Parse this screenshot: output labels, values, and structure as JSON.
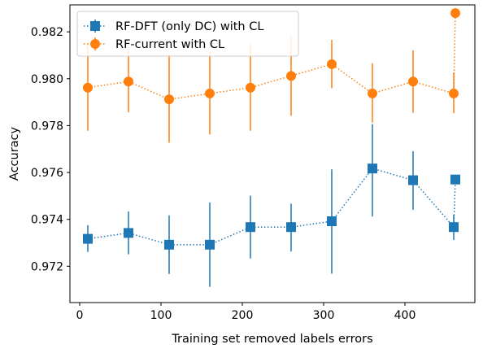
{
  "chart_data": {
    "type": "line",
    "xlabel": "Training set removed labels errors",
    "ylabel": "Accuracy",
    "xlim": [
      -12,
      486
    ],
    "ylim": [
      0.97045,
      0.98315
    ],
    "xticks": [
      0,
      100,
      200,
      300,
      400
    ],
    "xtick_labels": [
      "0",
      "100",
      "200",
      "300",
      "400"
    ],
    "yticks": [
      0.972,
      0.974,
      0.976,
      0.978,
      0.98,
      0.982
    ],
    "ytick_labels": [
      "0.972",
      "0.974",
      "0.976",
      "0.978",
      "0.980",
      "0.982"
    ],
    "grid": false,
    "legend_position": "top-left",
    "series": [
      {
        "name": "RF-DFT (only DC) with CL",
        "color": "#1f77b4",
        "marker": "square",
        "linestyle": "dotted",
        "x": [
          10,
          60,
          110,
          160,
          210,
          260,
          310,
          360,
          410,
          460,
          462
        ],
        "y": [
          0.97317,
          0.97342,
          0.97292,
          0.97292,
          0.97367,
          0.97367,
          0.97392,
          0.97617,
          0.97567,
          0.97367,
          0.9757
        ],
        "err_low": [
          0.97261,
          0.97251,
          0.97167,
          0.97112,
          0.97233,
          0.97263,
          0.97168,
          0.97412,
          0.97441,
          0.97312,
          0.9757
        ],
        "err_high": [
          0.97375,
          0.97434,
          0.97417,
          0.97472,
          0.97501,
          0.97467,
          0.97613,
          0.97806,
          0.97691,
          0.97421,
          0.9757
        ]
      },
      {
        "name": "RF-current with CL",
        "color": "#ff7f0e",
        "marker": "circle",
        "linestyle": "dotted",
        "x": [
          10,
          60,
          110,
          160,
          210,
          260,
          310,
          360,
          410,
          460,
          462
        ],
        "y": [
          0.97962,
          0.97988,
          0.97912,
          0.97937,
          0.97962,
          0.98012,
          0.98062,
          0.97937,
          0.97988,
          0.97937,
          0.9828
        ],
        "err_low": [
          0.97778,
          0.97857,
          0.97727,
          0.97762,
          0.97778,
          0.97842,
          0.97959,
          0.97813,
          0.97855,
          0.97853,
          0.9828
        ],
        "err_high": [
          0.98147,
          0.9812,
          0.98099,
          0.98114,
          0.98147,
          0.98181,
          0.98166,
          0.98066,
          0.98121,
          0.98027,
          0.9828
        ]
      }
    ]
  }
}
